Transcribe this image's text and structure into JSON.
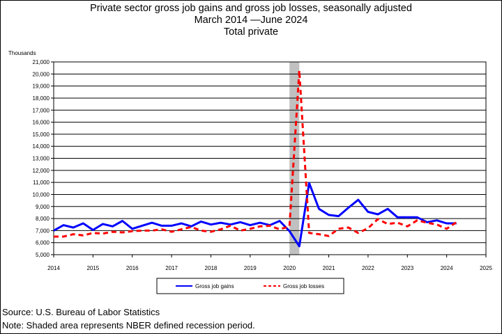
{
  "header": {
    "line1": "Private sector gross job gains and gross job losses, seasonally adjusted",
    "line2": "March 2014 —June 2024",
    "line3": "Total private"
  },
  "footer": {
    "source": "Source: U.S. Bureau of Labor Statistics",
    "note": "Note: Shaded area represents NBER defined recession period."
  },
  "chart_data": {
    "type": "line",
    "title": "Private sector gross job gains and gross job losses, seasonally adjusted",
    "subtitle": "March 2014 —June 2024 / Total private",
    "xlabel": "",
    "ylabel": "Thousands",
    "xlim": [
      2014,
      2025
    ],
    "ylim": [
      5000,
      21000
    ],
    "x_ticks": [
      "2014",
      "2015",
      "2016",
      "2017",
      "2018",
      "2019",
      "2020",
      "2021",
      "2022",
      "2023",
      "2024",
      "2025"
    ],
    "y_ticks": [
      "5,000",
      "6,000",
      "7,000",
      "8,000",
      "9,000",
      "10,000",
      "11,000",
      "12,000",
      "13,000",
      "14,000",
      "15,000",
      "16,000",
      "17,000",
      "18,000",
      "19,000",
      "20,000",
      "21,000"
    ],
    "grid": "horizontal",
    "legend_position": "bottom",
    "recession_band": [
      2020.0,
      2020.25
    ],
    "x": [
      2014.0,
      2014.25,
      2014.5,
      2014.75,
      2015.0,
      2015.25,
      2015.5,
      2015.75,
      2016.0,
      2016.25,
      2016.5,
      2016.75,
      2017.0,
      2017.25,
      2017.5,
      2017.75,
      2018.0,
      2018.25,
      2018.5,
      2018.75,
      2019.0,
      2019.25,
      2019.5,
      2019.75,
      2020.0,
      2020.25,
      2020.5,
      2020.75,
      2021.0,
      2021.25,
      2021.5,
      2021.75,
      2022.0,
      2022.25,
      2022.5,
      2022.75,
      2023.0,
      2023.25,
      2023.5,
      2023.75,
      2024.0,
      2024.25
    ],
    "series": [
      {
        "name": "Gross job gains",
        "color": "#0000ff",
        "style": "solid",
        "values": [
          7000,
          7450,
          7250,
          7600,
          7050,
          7550,
          7350,
          7800,
          7150,
          7400,
          7650,
          7400,
          7400,
          7600,
          7350,
          7750,
          7500,
          7650,
          7500,
          7700,
          7450,
          7650,
          7450,
          7800,
          6950,
          5700,
          10950,
          8800,
          8300,
          8200,
          8900,
          9550,
          8550,
          8350,
          8800,
          8100,
          8100,
          8100,
          7700,
          7850,
          7600,
          7600
        ]
      },
      {
        "name": "Gross job losses",
        "color": "#ff0000",
        "style": "dashed",
        "values": [
          6500,
          6500,
          6700,
          6600,
          6800,
          6750,
          6900,
          6850,
          6950,
          7000,
          7000,
          7100,
          6900,
          7100,
          7300,
          7000,
          6900,
          7100,
          7400,
          7000,
          7150,
          7350,
          7400,
          7100,
          7350,
          20300,
          6800,
          6700,
          6550,
          7150,
          7250,
          6800,
          7200,
          7950,
          7550,
          7650,
          7350,
          7850,
          7650,
          7500,
          7150,
          7700
        ]
      }
    ]
  }
}
